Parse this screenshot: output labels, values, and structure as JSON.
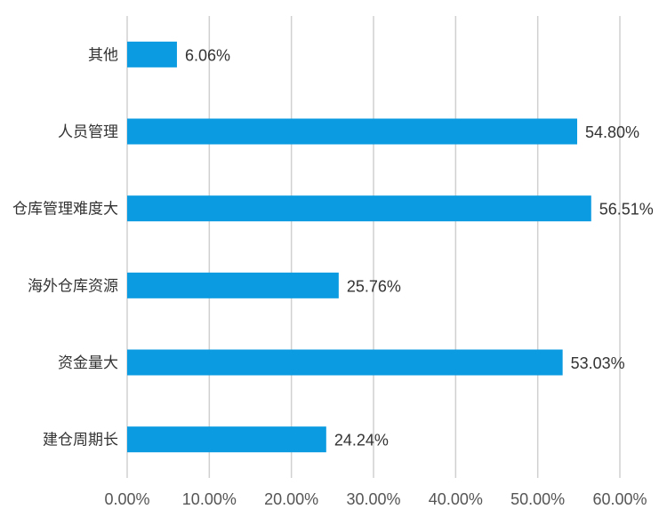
{
  "chart_data": {
    "type": "bar",
    "orientation": "horizontal",
    "categories": [
      "其他",
      "人员管理",
      "仓库管理难度大",
      "海外仓库资源",
      "资金量大",
      "建仓周期长"
    ],
    "values": [
      6.06,
      54.8,
      56.51,
      25.76,
      53.03,
      24.24
    ],
    "value_labels": [
      "6.06%",
      "54.80%",
      "56.51%",
      "25.76%",
      "53.03%",
      "24.24%"
    ],
    "x_ticks": [
      "0.00%",
      "10.00%",
      "20.00%",
      "30.00%",
      "40.00%",
      "50.00%",
      "60.00%"
    ],
    "xlim": [
      0,
      60
    ],
    "grid": true,
    "bar_color": "#0b9be0",
    "title": "",
    "xlabel": "",
    "ylabel": ""
  }
}
